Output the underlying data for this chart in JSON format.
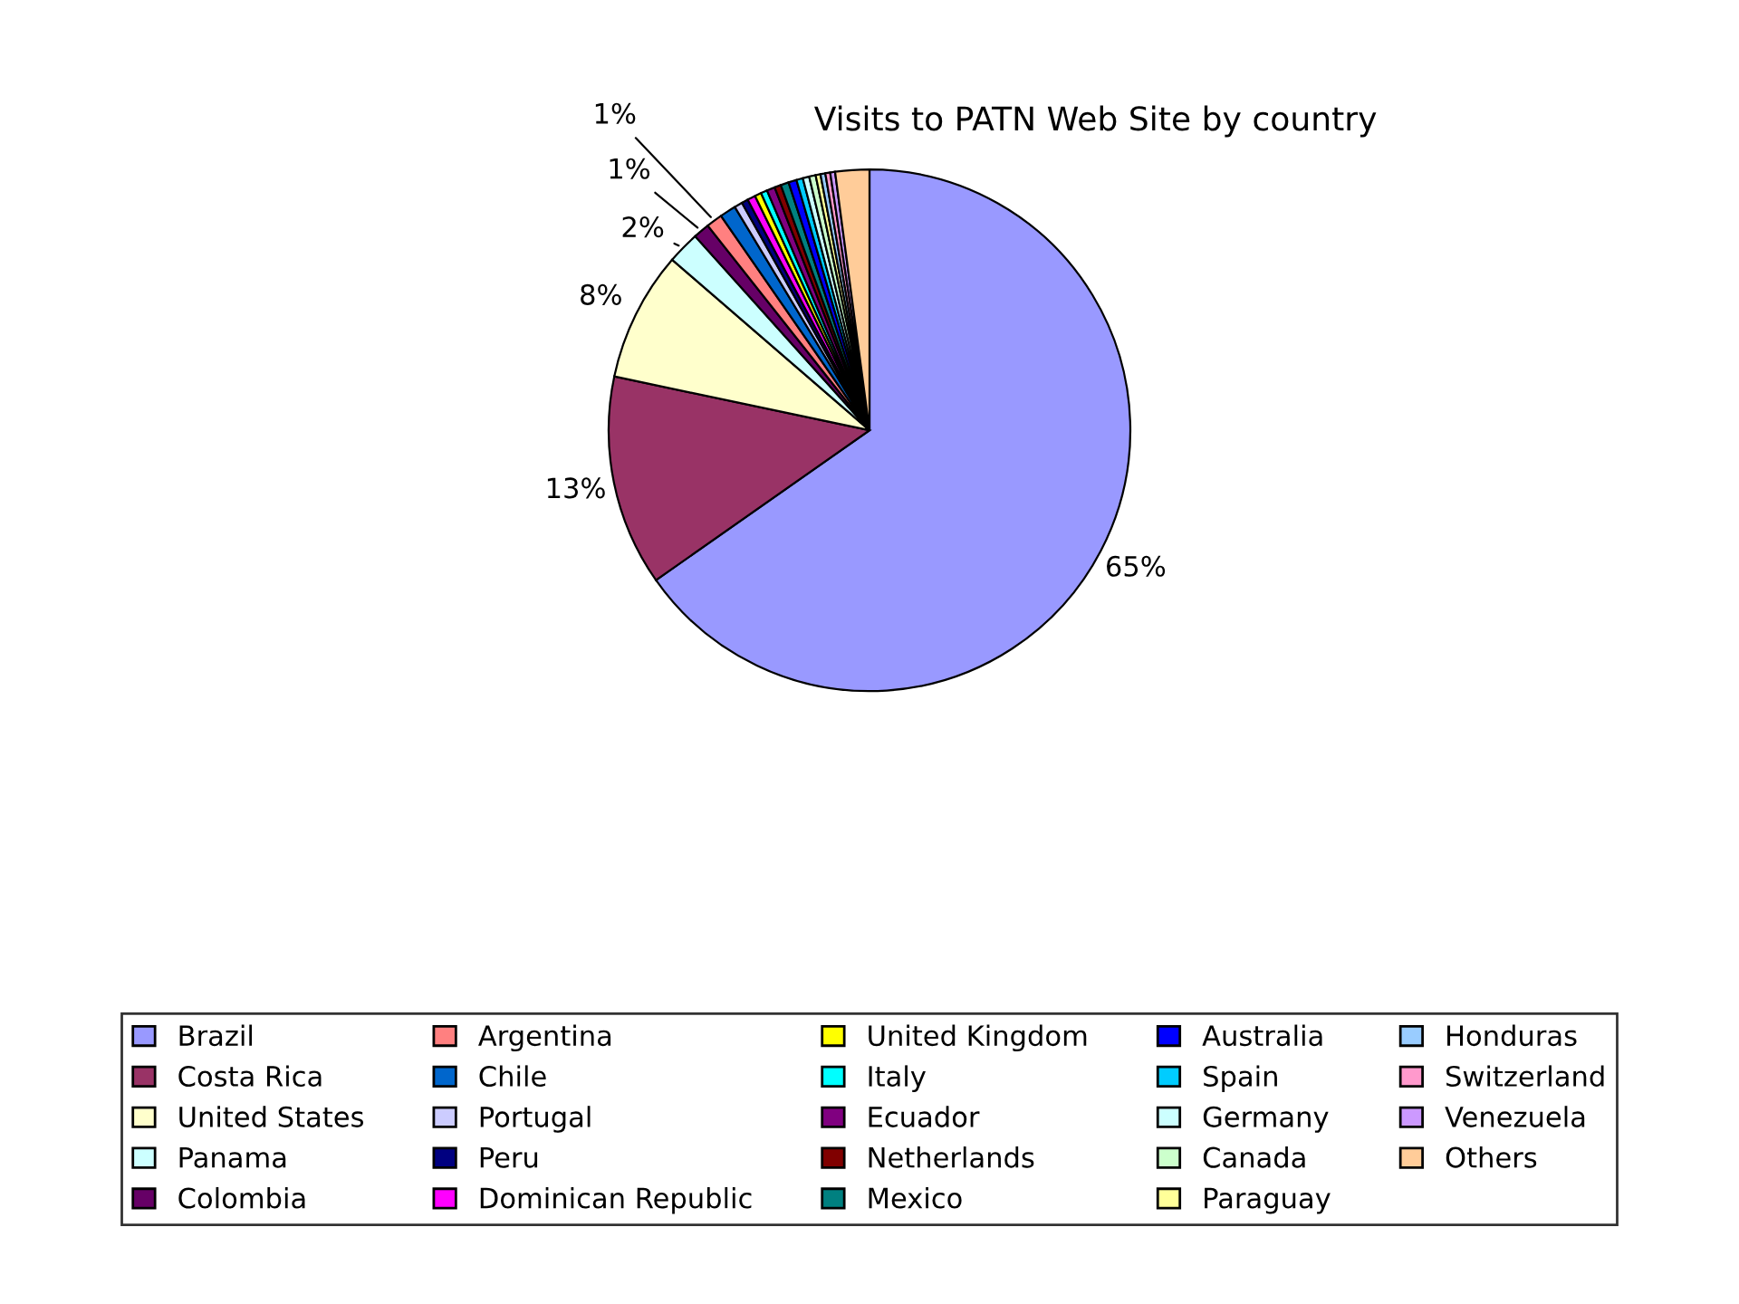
{
  "chart_data": {
    "type": "pie",
    "title": "Visits to PATN Web Site by country",
    "categories": [
      "Brazil",
      "Costa Rica",
      "United States",
      "Panama",
      "Colombia",
      "Argentina",
      "Chile",
      "Portugal",
      "Peru",
      "Dominican Republic",
      "United Kingdom",
      "Italy",
      "Ecuador",
      "Netherlands",
      "Mexico",
      "Australia",
      "Spain",
      "Germany",
      "Canada",
      "Paraguay",
      "Honduras",
      "Switzerland",
      "Venezuela",
      "Others"
    ],
    "values": [
      65,
      13,
      8,
      2,
      1,
      1,
      1,
      0.5,
      0.4,
      0.5,
      0.4,
      0.4,
      0.5,
      0.4,
      0.5,
      0.5,
      0.4,
      0.4,
      0.4,
      0.3,
      0.3,
      0.3,
      0.3,
      2.1
    ],
    "colors": [
      "#9999ff",
      "#993366",
      "#ffffcc",
      "#ccffff",
      "#660066",
      "#ff8080",
      "#0066cc",
      "#ccccff",
      "#000080",
      "#ff00ff",
      "#ffff00",
      "#00ffff",
      "#800080",
      "#800000",
      "#008080",
      "#0000ff",
      "#00ccff",
      "#ccffff",
      "#ccffcc",
      "#ffff99",
      "#99ccff",
      "#ff99cc",
      "#cc99ff",
      "#ffcc99"
    ],
    "value_labels": [
      "65%",
      "13%",
      "8%",
      "2%",
      "1%",
      "1%",
      null,
      null,
      null,
      null,
      null,
      null,
      null,
      null,
      null,
      null,
      null,
      null,
      null,
      null,
      null,
      null,
      null,
      null
    ],
    "legend": "bottom"
  }
}
